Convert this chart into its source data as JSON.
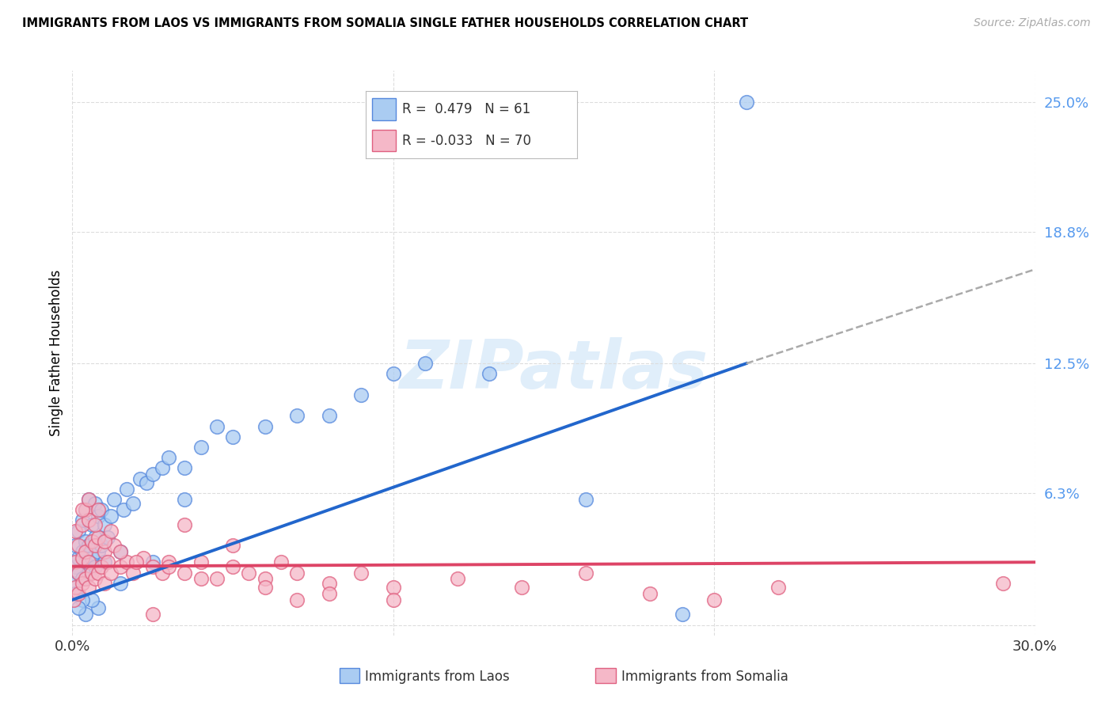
{
  "title": "IMMIGRANTS FROM LAOS VS IMMIGRANTS FROM SOMALIA SINGLE FATHER HOUSEHOLDS CORRELATION CHART",
  "source": "Source: ZipAtlas.com",
  "xlabel_laos": "Immigrants from Laos",
  "xlabel_somalia": "Immigrants from Somalia",
  "ylabel": "Single Father Households",
  "xlim": [
    0.0,
    0.3
  ],
  "ylim": [
    -0.005,
    0.265
  ],
  "laos_R": 0.479,
  "laos_N": 61,
  "somalia_R": -0.033,
  "somalia_N": 70,
  "laos_color": "#aaccf2",
  "somalia_color": "#f5b8c8",
  "laos_edge_color": "#5588dd",
  "somalia_edge_color": "#e06080",
  "laos_line_color": "#2266cc",
  "somalia_line_color": "#dd4466",
  "ytick_color": "#5599ee",
  "grid_color": "#dddddd",
  "watermark_color": "#e0eefa",
  "laos_x": [
    0.0005,
    0.001,
    0.001,
    0.001,
    0.002,
    0.002,
    0.002,
    0.003,
    0.003,
    0.003,
    0.004,
    0.004,
    0.004,
    0.005,
    0.005,
    0.005,
    0.006,
    0.006,
    0.007,
    0.007,
    0.007,
    0.008,
    0.008,
    0.009,
    0.009,
    0.01,
    0.01,
    0.011,
    0.012,
    0.013,
    0.015,
    0.016,
    0.017,
    0.019,
    0.021,
    0.023,
    0.025,
    0.028,
    0.03,
    0.035,
    0.04,
    0.045,
    0.05,
    0.06,
    0.07,
    0.08,
    0.09,
    0.1,
    0.11,
    0.13,
    0.16,
    0.19,
    0.21,
    0.035,
    0.025,
    0.015,
    0.008,
    0.004,
    0.006,
    0.003,
    0.002
  ],
  "laos_y": [
    0.02,
    0.015,
    0.028,
    0.038,
    0.025,
    0.032,
    0.045,
    0.022,
    0.035,
    0.05,
    0.03,
    0.04,
    0.055,
    0.025,
    0.038,
    0.06,
    0.032,
    0.048,
    0.028,
    0.042,
    0.058,
    0.035,
    0.052,
    0.038,
    0.055,
    0.03,
    0.048,
    0.042,
    0.052,
    0.06,
    0.035,
    0.055,
    0.065,
    0.058,
    0.07,
    0.068,
    0.072,
    0.075,
    0.08,
    0.075,
    0.085,
    0.095,
    0.09,
    0.095,
    0.1,
    0.1,
    0.11,
    0.12,
    0.125,
    0.12,
    0.06,
    0.005,
    0.25,
    0.06,
    0.03,
    0.02,
    0.008,
    0.005,
    0.012,
    0.012,
    0.008
  ],
  "somalia_x": [
    0.0005,
    0.001,
    0.001,
    0.001,
    0.002,
    0.002,
    0.002,
    0.003,
    0.003,
    0.003,
    0.004,
    0.004,
    0.004,
    0.005,
    0.005,
    0.005,
    0.006,
    0.006,
    0.007,
    0.007,
    0.008,
    0.008,
    0.009,
    0.01,
    0.01,
    0.011,
    0.012,
    0.013,
    0.015,
    0.017,
    0.019,
    0.022,
    0.025,
    0.028,
    0.03,
    0.035,
    0.04,
    0.045,
    0.05,
    0.055,
    0.06,
    0.065,
    0.07,
    0.08,
    0.09,
    0.1,
    0.12,
    0.14,
    0.16,
    0.18,
    0.2,
    0.22,
    0.29,
    0.003,
    0.005,
    0.007,
    0.01,
    0.015,
    0.02,
    0.03,
    0.04,
    0.06,
    0.08,
    0.1,
    0.05,
    0.07,
    0.025,
    0.008,
    0.012,
    0.035
  ],
  "somalia_y": [
    0.012,
    0.018,
    0.03,
    0.045,
    0.015,
    0.025,
    0.038,
    0.02,
    0.032,
    0.048,
    0.022,
    0.035,
    0.055,
    0.018,
    0.03,
    0.05,
    0.025,
    0.04,
    0.022,
    0.038,
    0.025,
    0.042,
    0.028,
    0.02,
    0.035,
    0.03,
    0.025,
    0.038,
    0.028,
    0.03,
    0.025,
    0.032,
    0.028,
    0.025,
    0.03,
    0.025,
    0.03,
    0.022,
    0.028,
    0.025,
    0.022,
    0.03,
    0.025,
    0.02,
    0.025,
    0.018,
    0.022,
    0.018,
    0.025,
    0.015,
    0.012,
    0.018,
    0.02,
    0.055,
    0.06,
    0.048,
    0.04,
    0.035,
    0.03,
    0.028,
    0.022,
    0.018,
    0.015,
    0.012,
    0.038,
    0.012,
    0.005,
    0.055,
    0.045,
    0.048
  ],
  "laos_line_x0": 0.0,
  "laos_line_y0": 0.012,
  "laos_line_x1": 0.21,
  "laos_line_y1": 0.125,
  "laos_line_xend": 0.3,
  "laos_line_yend": 0.17,
  "somalia_line_x0": 0.0,
  "somalia_line_y0": 0.028,
  "somalia_line_x1": 0.3,
  "somalia_line_y1": 0.03,
  "yticks": [
    0.0,
    0.063,
    0.125,
    0.188,
    0.25
  ],
  "ytick_labels": [
    "",
    "6.3%",
    "12.5%",
    "18.8%",
    "25.0%"
  ],
  "xticks": [
    0.0,
    0.1,
    0.2,
    0.3
  ],
  "xtick_labels": [
    "0.0%",
    "",
    "",
    "30.0%"
  ]
}
